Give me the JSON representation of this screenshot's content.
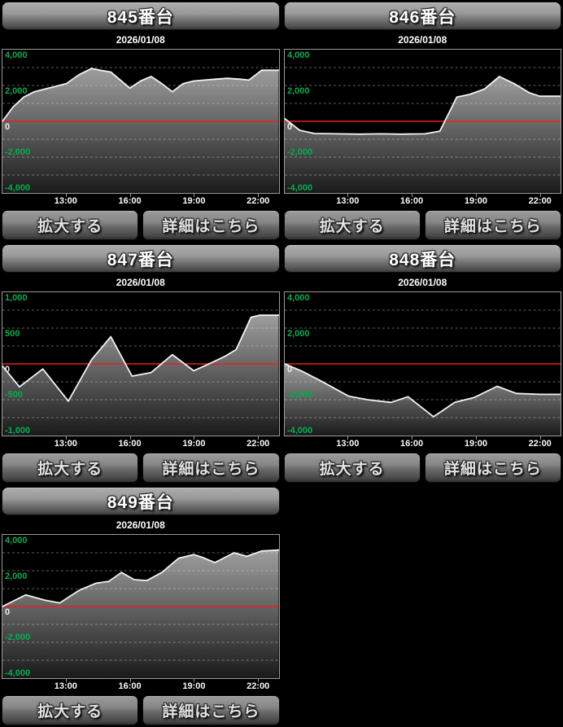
{
  "buttons": {
    "enlarge": "拡大する",
    "details": "詳細はこちら"
  },
  "colors": {
    "label_green": "#00b050",
    "zero_label": "#ededed",
    "zero_line_red": "#e62020",
    "line_white": "#f2f2f2",
    "grid_dash": "rgba(225,225,225,0.42)",
    "chart_border": "#9a9a9a",
    "fill_top": "#9e9e9e",
    "fill_bottom": "#1a1a1a",
    "tick_mark": "#999999",
    "x_label": "#fafafa"
  },
  "chart_data": [
    {
      "type": "area",
      "title": "845番台",
      "date": "2026/01/08",
      "x_hours_range": [
        10,
        23
      ],
      "ylim": [
        -4000,
        4000
      ],
      "grid_step": 1000,
      "yticks": {
        "values": [
          4000,
          2000,
          0,
          -2000,
          -4000
        ],
        "labels": [
          "4,000",
          "2,000",
          "0",
          "-2,000",
          "-4,000"
        ]
      },
      "xticks": {
        "hours": [
          13,
          16,
          19,
          22
        ],
        "labels": [
          "13:00",
          "16:00",
          "19:00",
          "22:00"
        ]
      },
      "zero_line": true,
      "series": [
        {
          "points": [
            [
              10,
              0
            ],
            [
              10.5,
              800
            ],
            [
              11,
              1350
            ],
            [
              11.5,
              1650
            ],
            [
              12,
              1800
            ],
            [
              12.5,
              1950
            ],
            [
              13,
              2100
            ],
            [
              13.6,
              2600
            ],
            [
              14.2,
              2950
            ],
            [
              14.6,
              2850
            ],
            [
              15.1,
              2750
            ],
            [
              16,
              1850
            ],
            [
              16.5,
              2250
            ],
            [
              17,
              2500
            ],
            [
              17.5,
              2100
            ],
            [
              18,
              1650
            ],
            [
              18.5,
              2100
            ],
            [
              19,
              2250
            ],
            [
              19.5,
              2300
            ],
            [
              20,
              2350
            ],
            [
              20.6,
              2400
            ],
            [
              21.2,
              2350
            ],
            [
              21.6,
              2300
            ],
            [
              22.2,
              2850
            ],
            [
              23,
              2850
            ]
          ]
        }
      ]
    },
    {
      "type": "area",
      "title": "846番台",
      "date": "2026/01/08",
      "x_hours_range": [
        10,
        23
      ],
      "ylim": [
        -4000,
        4000
      ],
      "grid_step": 1000,
      "yticks": {
        "values": [
          4000,
          2000,
          0,
          -2000,
          -4000
        ],
        "labels": [
          "4,000",
          "2,000",
          "0",
          "-2,000",
          "-4,000"
        ]
      },
      "xticks": {
        "hours": [
          13,
          16,
          19,
          22
        ],
        "labels": [
          "13:00",
          "16:00",
          "19:00",
          "22:00"
        ]
      },
      "zero_line": true,
      "series": [
        {
          "points": [
            [
              10,
              150
            ],
            [
              10.7,
              -500
            ],
            [
              11.4,
              -680
            ],
            [
              12.5,
              -700
            ],
            [
              13.5,
              -720
            ],
            [
              14.5,
              -700
            ],
            [
              15.5,
              -720
            ],
            [
              16.6,
              -700
            ],
            [
              17.3,
              -550
            ],
            [
              18.1,
              1350
            ],
            [
              18.7,
              1500
            ],
            [
              19.4,
              1800
            ],
            [
              20.1,
              2500
            ],
            [
              20.8,
              2100
            ],
            [
              21.5,
              1600
            ],
            [
              22,
              1400
            ],
            [
              23,
              1400
            ]
          ]
        }
      ]
    },
    {
      "type": "area",
      "title": "847番台",
      "date": "2026/01/08",
      "x_hours_range": [
        10,
        23
      ],
      "ylim": [
        -1000,
        1000
      ],
      "grid_step": 250,
      "yticks": {
        "values": [
          1000,
          500,
          0,
          -500,
          -1000
        ],
        "labels": [
          "1,000",
          "500",
          "0",
          "-500",
          "-1,000"
        ]
      },
      "xticks": {
        "hours": [
          13,
          16,
          19,
          22
        ],
        "labels": [
          "13:00",
          "16:00",
          "19:00",
          "22:00"
        ]
      },
      "zero_line": true,
      "series": [
        {
          "points": [
            [
              10,
              -30
            ],
            [
              10.8,
              -320
            ],
            [
              11.9,
              -70
            ],
            [
              13.1,
              -520
            ],
            [
              14.2,
              60
            ],
            [
              15.1,
              380
            ],
            [
              16.1,
              -170
            ],
            [
              17,
              -120
            ],
            [
              18,
              130
            ],
            [
              19,
              -95
            ],
            [
              19.8,
              10
            ],
            [
              20.5,
              110
            ],
            [
              21,
              200
            ],
            [
              21.7,
              650
            ],
            [
              22.1,
              680
            ],
            [
              23,
              680
            ]
          ]
        }
      ]
    },
    {
      "type": "area",
      "title": "848番台",
      "date": "2026/01/08",
      "x_hours_range": [
        10,
        23
      ],
      "ylim": [
        -4000,
        4000
      ],
      "grid_step": 1000,
      "yticks": {
        "values": [
          4000,
          2000,
          0,
          -2000,
          -4000
        ],
        "labels": [
          "4,000",
          "2,000",
          "0",
          "-2,000",
          "-4,000"
        ]
      },
      "xticks": {
        "hours": [
          13,
          16,
          19,
          22
        ],
        "labels": [
          "13:00",
          "16:00",
          "19:00",
          "22:00"
        ]
      },
      "zero_line": true,
      "series": [
        {
          "points": [
            [
              10,
              0
            ],
            [
              10.8,
              -400
            ],
            [
              11.7,
              -950
            ],
            [
              13,
              -1800
            ],
            [
              13.9,
              -2000
            ],
            [
              15,
              -2150
            ],
            [
              15.8,
              -1830
            ],
            [
              17,
              -2950
            ],
            [
              18,
              -2150
            ],
            [
              18.9,
              -1880
            ],
            [
              20,
              -1250
            ],
            [
              20.9,
              -1650
            ],
            [
              22,
              -1700
            ],
            [
              23,
              -1700
            ]
          ]
        }
      ]
    },
    {
      "type": "area",
      "title": "849番台",
      "date": "2026/01/08",
      "x_hours_range": [
        10,
        23
      ],
      "ylim": [
        -4000,
        4000
      ],
      "grid_step": 1000,
      "yticks": {
        "values": [
          4000,
          2000,
          0,
          -2000,
          -4000
        ],
        "labels": [
          "4,000",
          "2,000",
          "0",
          "-2,000",
          "-4,000"
        ]
      },
      "xticks": {
        "hours": [
          13,
          16,
          19,
          22
        ],
        "labels": [
          "13:00",
          "16:00",
          "19:00",
          "22:00"
        ]
      },
      "zero_line": true,
      "series": [
        {
          "points": [
            [
              10,
              0
            ],
            [
              11.1,
              650
            ],
            [
              12,
              350
            ],
            [
              12.7,
              200
            ],
            [
              13.6,
              900
            ],
            [
              14.4,
              1300
            ],
            [
              15,
              1400
            ],
            [
              15.6,
              1900
            ],
            [
              16.2,
              1500
            ],
            [
              16.8,
              1450
            ],
            [
              17.5,
              1900
            ],
            [
              18.3,
              2700
            ],
            [
              19,
              2900
            ],
            [
              19.4,
              2750
            ],
            [
              20,
              2450
            ],
            [
              20.9,
              3000
            ],
            [
              21.5,
              2800
            ],
            [
              22.2,
              3100
            ],
            [
              23,
              3150
            ]
          ]
        }
      ]
    }
  ]
}
